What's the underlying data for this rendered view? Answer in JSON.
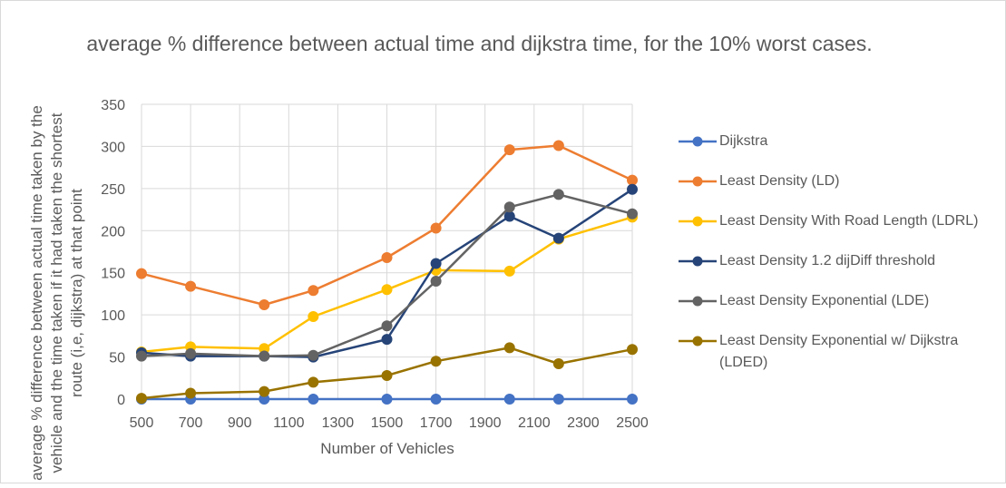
{
  "chart_data": {
    "type": "line",
    "title": "average % difference between actual time and dijkstra time, for the 10% worst cases.",
    "xlabel": "Number of Vehicles",
    "ylabel": "average % difference  between actual time taken by the vehicle and the time taken if it had taken the shortest route (i,e, dijkstra) at that point",
    "x": [
      500,
      700,
      1000,
      1200,
      1500,
      1700,
      2000,
      2200,
      2500
    ],
    "xticks": [
      500,
      700,
      900,
      1100,
      1300,
      1500,
      1700,
      1900,
      2100,
      2300,
      2500
    ],
    "xlim": [
      500,
      2500
    ],
    "ylim": [
      0,
      350
    ],
    "yticks": [
      0,
      50,
      100,
      150,
      200,
      250,
      300,
      350
    ],
    "grid": true,
    "legend_position": "right",
    "series": [
      {
        "name": "Dijkstra",
        "color": "#4472c4",
        "values": [
          0,
          0,
          0,
          0,
          0,
          0,
          0,
          0,
          0
        ]
      },
      {
        "name": "Least Density (LD)",
        "color": "#ed7d31",
        "values": [
          149,
          134,
          112,
          129,
          168,
          203,
          296,
          301,
          260
        ]
      },
      {
        "name": "Least Density With Road Length (LDRL)",
        "color": "#ffc000",
        "values": [
          56,
          62,
          60,
          98,
          130,
          153,
          152,
          190,
          216
        ]
      },
      {
        "name": "Least Density 1.2 dijDiff threshold",
        "color": "#264478",
        "values": [
          55,
          51,
          51,
          50,
          71,
          161,
          217,
          191,
          249
        ]
      },
      {
        "name": "Least Density Exponential (LDE)",
        "color": "#636363",
        "values": [
          51,
          54,
          51,
          52,
          87,
          140,
          228,
          243,
          220
        ]
      },
      {
        "name": "Least Density Exponential w/ Dijkstra (LDED)",
        "color": "#997300",
        "values": [
          1,
          7,
          9,
          20,
          28,
          45,
          61,
          42,
          59
        ]
      }
    ]
  }
}
